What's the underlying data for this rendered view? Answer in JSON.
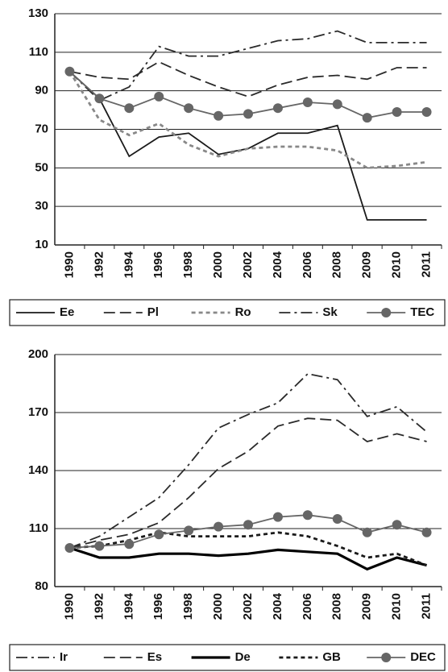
{
  "chart_data": [
    {
      "type": "line",
      "categories": [
        "1990",
        "1992",
        "1994",
        "1996",
        "1998",
        "2000",
        "2002",
        "2004",
        "2006",
        "2008",
        "2009",
        "2010",
        "2011"
      ],
      "ylim": [
        10,
        130
      ],
      "yticks": [
        10,
        30,
        50,
        70,
        90,
        110,
        130
      ],
      "grid": true,
      "series": [
        {
          "name": "Ee",
          "color": "#1a1a1a",
          "dash": "solid",
          "values": [
            100,
            86,
            56,
            66,
            68,
            57,
            60,
            68,
            68,
            72,
            23,
            23,
            23
          ]
        },
        {
          "name": "Pl",
          "color": "#2a2a2a",
          "dash": "dash",
          "values": [
            100,
            97,
            96,
            105,
            98,
            92,
            87,
            93,
            97,
            98,
            96,
            102,
            102
          ]
        },
        {
          "name": "Ro",
          "color": "#888888",
          "dash": "dot",
          "values": [
            100,
            75,
            67,
            73,
            62,
            56,
            60,
            61,
            61,
            59,
            50,
            51,
            53
          ]
        },
        {
          "name": "Sk",
          "color": "#2a2a2a",
          "dash": "dashdot",
          "values": [
            100,
            85,
            92,
            113,
            108,
            108,
            112,
            116,
            117,
            121,
            115,
            115,
            115
          ]
        },
        {
          "name": "TEC",
          "color": "#666666",
          "dash": "solid",
          "marker": "circle",
          "values": [
            100,
            86,
            81,
            87,
            81,
            77,
            78,
            81,
            84,
            83,
            76,
            79,
            79
          ]
        }
      ]
    },
    {
      "type": "line",
      "categories": [
        "1990",
        "1992",
        "1994",
        "1996",
        "1998",
        "2000",
        "2002",
        "2004",
        "2006",
        "2008",
        "2009",
        "2010",
        "2011"
      ],
      "ylim": [
        80,
        200
      ],
      "yticks": [
        80,
        110,
        140,
        170,
        200
      ],
      "grid": true,
      "series": [
        {
          "name": "Ir",
          "color": "#2a2a2a",
          "dash": "dashdot",
          "values": [
            100,
            106,
            116,
            126,
            143,
            162,
            169,
            175,
            190,
            187,
            168,
            173,
            160
          ]
        },
        {
          "name": "Es",
          "color": "#2a2a2a",
          "dash": "dash",
          "values": [
            100,
            104,
            107,
            113,
            126,
            141,
            150,
            163,
            167,
            166,
            155,
            159,
            155
          ]
        },
        {
          "name": "De",
          "color": "#000000",
          "dash": "thick",
          "values": [
            100,
            95,
            95,
            97,
            97,
            96,
            97,
            99,
            98,
            97,
            89,
            95,
            91
          ]
        },
        {
          "name": "GB",
          "color": "#1a1a1a",
          "dash": "dot",
          "values": [
            100,
            101,
            104,
            108,
            106,
            106,
            106,
            108,
            106,
            101,
            95,
            97,
            91
          ]
        },
        {
          "name": "DEC",
          "color": "#666666",
          "dash": "solid",
          "marker": "circle",
          "values": [
            100,
            101,
            102,
            107,
            109,
            111,
            112,
            116,
            117,
            115,
            108,
            112,
            108
          ]
        }
      ]
    }
  ]
}
